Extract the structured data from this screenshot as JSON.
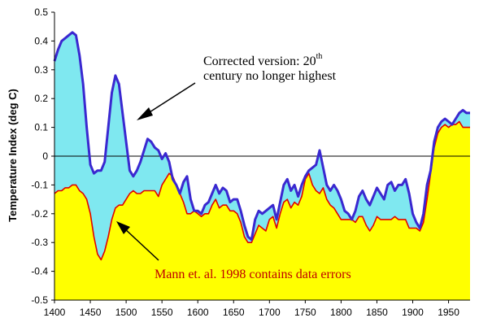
{
  "chart_data": {
    "type": "area",
    "title": "",
    "xlabel": "",
    "ylabel": "Temperature Index (deg C)",
    "xlim": [
      1400,
      1980
    ],
    "ylim": [
      -0.5,
      0.5
    ],
    "x_ticks": [
      "1400",
      "1450",
      "1500",
      "1550",
      "1600",
      "1650",
      "1700",
      "1750",
      "1800",
      "1850",
      "1900",
      "1950"
    ],
    "y_ticks": [
      "0.5",
      "0.4",
      "0.3",
      "0.2",
      "0.1",
      "0",
      "-0.1",
      "-0.2",
      "-0.3",
      "-0.4",
      "-0.5"
    ],
    "grid": false,
    "zero_line": true,
    "colors": {
      "corrected_line": "#3a28d0",
      "corrected_fill": "#7fe8f0",
      "mann_line": "#e00000",
      "mann_fill": "#ffff00"
    },
    "series": [
      {
        "x": [
          1400,
          1405,
          1410,
          1415,
          1420,
          1425,
          1430,
          1435,
          1440,
          1445,
          1450,
          1455,
          1460,
          1465,
          1470,
          1475,
          1480,
          1485,
          1490,
          1495,
          1500,
          1505,
          1510,
          1515,
          1520,
          1525,
          1530,
          1535,
          1540,
          1545,
          1550,
          1555,
          1560,
          1565,
          1570,
          1575,
          1580,
          1585,
          1590,
          1595,
          1600,
          1605,
          1610,
          1615,
          1620,
          1625,
          1630,
          1635,
          1640,
          1645,
          1650,
          1655,
          1660,
          1665,
          1670,
          1675,
          1680,
          1685,
          1690,
          1695,
          1700,
          1705,
          1710,
          1715,
          1720,
          1725,
          1730,
          1735,
          1740,
          1745,
          1750,
          1755,
          1760,
          1765,
          1770,
          1775,
          1780,
          1785,
          1790,
          1795,
          1800,
          1805,
          1810,
          1815,
          1820,
          1825,
          1830,
          1835,
          1840,
          1845,
          1850,
          1855,
          1860,
          1865,
          1870,
          1875,
          1880,
          1885,
          1890,
          1895,
          1900,
          1905,
          1910,
          1915,
          1920,
          1925,
          1930,
          1935,
          1940,
          1945,
          1950,
          1955,
          1960,
          1965,
          1970,
          1975,
          1980
        ],
        "values": [
          0.33,
          0.37,
          0.4,
          0.41,
          0.42,
          0.43,
          0.42,
          0.35,
          0.25,
          0.1,
          -0.03,
          -0.06,
          -0.05,
          -0.05,
          -0.02,
          0.1,
          0.22,
          0.28,
          0.25,
          0.15,
          0.05,
          -0.05,
          -0.07,
          -0.05,
          -0.02,
          0.02,
          0.06,
          0.05,
          0.03,
          0.02,
          -0.01,
          0.01,
          -0.02,
          -0.08,
          -0.1,
          -0.13,
          -0.09,
          -0.07,
          -0.15,
          -0.19,
          -0.19,
          -0.2,
          -0.17,
          -0.16,
          -0.13,
          -0.1,
          -0.13,
          -0.11,
          -0.12,
          -0.16,
          -0.15,
          -0.15,
          -0.19,
          -0.24,
          -0.28,
          -0.29,
          -0.22,
          -0.19,
          -0.2,
          -0.19,
          -0.18,
          -0.17,
          -0.22,
          -0.16,
          -0.1,
          -0.08,
          -0.12,
          -0.1,
          -0.14,
          -0.1,
          -0.07,
          -0.05,
          -0.04,
          -0.03,
          0.02,
          -0.04,
          -0.1,
          -0.12,
          -0.1,
          -0.12,
          -0.15,
          -0.19,
          -0.2,
          -0.22,
          -0.19,
          -0.14,
          -0.12,
          -0.15,
          -0.17,
          -0.14,
          -0.11,
          -0.13,
          -0.15,
          -0.1,
          -0.09,
          -0.12,
          -0.1,
          -0.1,
          -0.08,
          -0.13,
          -0.2,
          -0.23,
          -0.25,
          -0.2,
          -0.1,
          -0.05,
          0.05,
          0.1,
          0.12,
          0.13,
          0.12,
          0.11,
          0.13,
          0.15,
          0.16,
          0.15,
          0.15
        ]
      },
      {
        "x": [
          1400,
          1405,
          1410,
          1415,
          1420,
          1425,
          1430,
          1435,
          1440,
          1445,
          1450,
          1455,
          1460,
          1465,
          1470,
          1475,
          1480,
          1485,
          1490,
          1495,
          1500,
          1505,
          1510,
          1515,
          1520,
          1525,
          1530,
          1535,
          1540,
          1545,
          1550,
          1555,
          1560,
          1565,
          1570,
          1575,
          1580,
          1585,
          1590,
          1595,
          1600,
          1605,
          1610,
          1615,
          1620,
          1625,
          1630,
          1635,
          1640,
          1645,
          1650,
          1655,
          1660,
          1665,
          1670,
          1675,
          1680,
          1685,
          1690,
          1695,
          1700,
          1705,
          1710,
          1715,
          1720,
          1725,
          1730,
          1735,
          1740,
          1745,
          1750,
          1755,
          1760,
          1765,
          1770,
          1775,
          1780,
          1785,
          1790,
          1795,
          1800,
          1805,
          1810,
          1815,
          1820,
          1825,
          1830,
          1835,
          1840,
          1845,
          1850,
          1855,
          1860,
          1865,
          1870,
          1875,
          1880,
          1885,
          1890,
          1895,
          1900,
          1905,
          1910,
          1915,
          1920,
          1925,
          1930,
          1935,
          1940,
          1945,
          1950,
          1955,
          1960,
          1965,
          1970,
          1975,
          1980
        ],
        "values": [
          -0.13,
          -0.12,
          -0.12,
          -0.11,
          -0.11,
          -0.1,
          -0.1,
          -0.12,
          -0.13,
          -0.15,
          -0.2,
          -0.28,
          -0.34,
          -0.36,
          -0.33,
          -0.28,
          -0.22,
          -0.18,
          -0.17,
          -0.17,
          -0.15,
          -0.13,
          -0.12,
          -0.13,
          -0.13,
          -0.12,
          -0.12,
          -0.12,
          -0.12,
          -0.14,
          -0.1,
          -0.08,
          -0.06,
          -0.07,
          -0.1,
          -0.13,
          -0.16,
          -0.2,
          -0.2,
          -0.19,
          -0.2,
          -0.21,
          -0.2,
          -0.2,
          -0.17,
          -0.15,
          -0.18,
          -0.17,
          -0.17,
          -0.19,
          -0.19,
          -0.2,
          -0.23,
          -0.28,
          -0.3,
          -0.3,
          -0.27,
          -0.24,
          -0.25,
          -0.26,
          -0.22,
          -0.21,
          -0.25,
          -0.2,
          -0.16,
          -0.15,
          -0.18,
          -0.16,
          -0.17,
          -0.14,
          -0.08,
          -0.06,
          -0.1,
          -0.12,
          -0.13,
          -0.11,
          -0.15,
          -0.17,
          -0.18,
          -0.2,
          -0.22,
          -0.22,
          -0.22,
          -0.22,
          -0.23,
          -0.21,
          -0.21,
          -0.24,
          -0.26,
          -0.24,
          -0.21,
          -0.22,
          -0.22,
          -0.22,
          -0.22,
          -0.21,
          -0.22,
          -0.22,
          -0.22,
          -0.25,
          -0.25,
          -0.25,
          -0.26,
          -0.23,
          -0.15,
          -0.06,
          0.03,
          0.08,
          0.1,
          0.11,
          0.1,
          0.11,
          0.11,
          0.12,
          0.1,
          0.1,
          0.1
        ]
      }
    ],
    "annotations": [
      {
        "lines": [
          "Corrected version: 20",
          "century no longer highest"
        ],
        "superscript": "th"
      },
      {
        "lines": [
          "Mann et. al. 1998 contains data errors"
        ]
      }
    ]
  }
}
